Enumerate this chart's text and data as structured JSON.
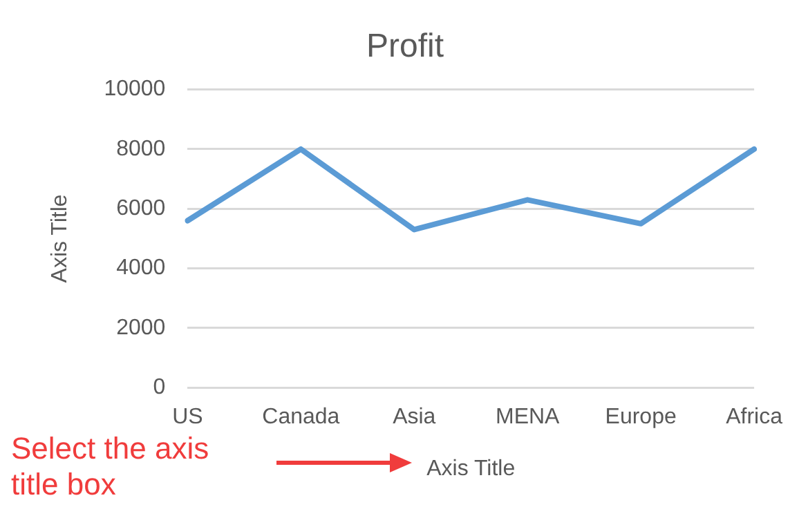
{
  "chart_data": {
    "type": "line",
    "title": "Profit",
    "xlabel": "Axis Title",
    "ylabel": "Axis Title",
    "categories": [
      "US",
      "Canada",
      "Asia",
      "MENA",
      "Europe",
      "Africa"
    ],
    "series": [
      {
        "color": "#5b9bd5",
        "values": [
          5600,
          8000,
          5300,
          6300,
          5500,
          8000
        ]
      }
    ],
    "ylim": [
      0,
      10000
    ],
    "yticks": [
      0,
      2000,
      4000,
      6000,
      8000,
      10000
    ],
    "grid": "y",
    "legend": false,
    "marker": "none",
    "line_style": "solid",
    "annotations": [
      "Select the axis title box"
    ]
  }
}
